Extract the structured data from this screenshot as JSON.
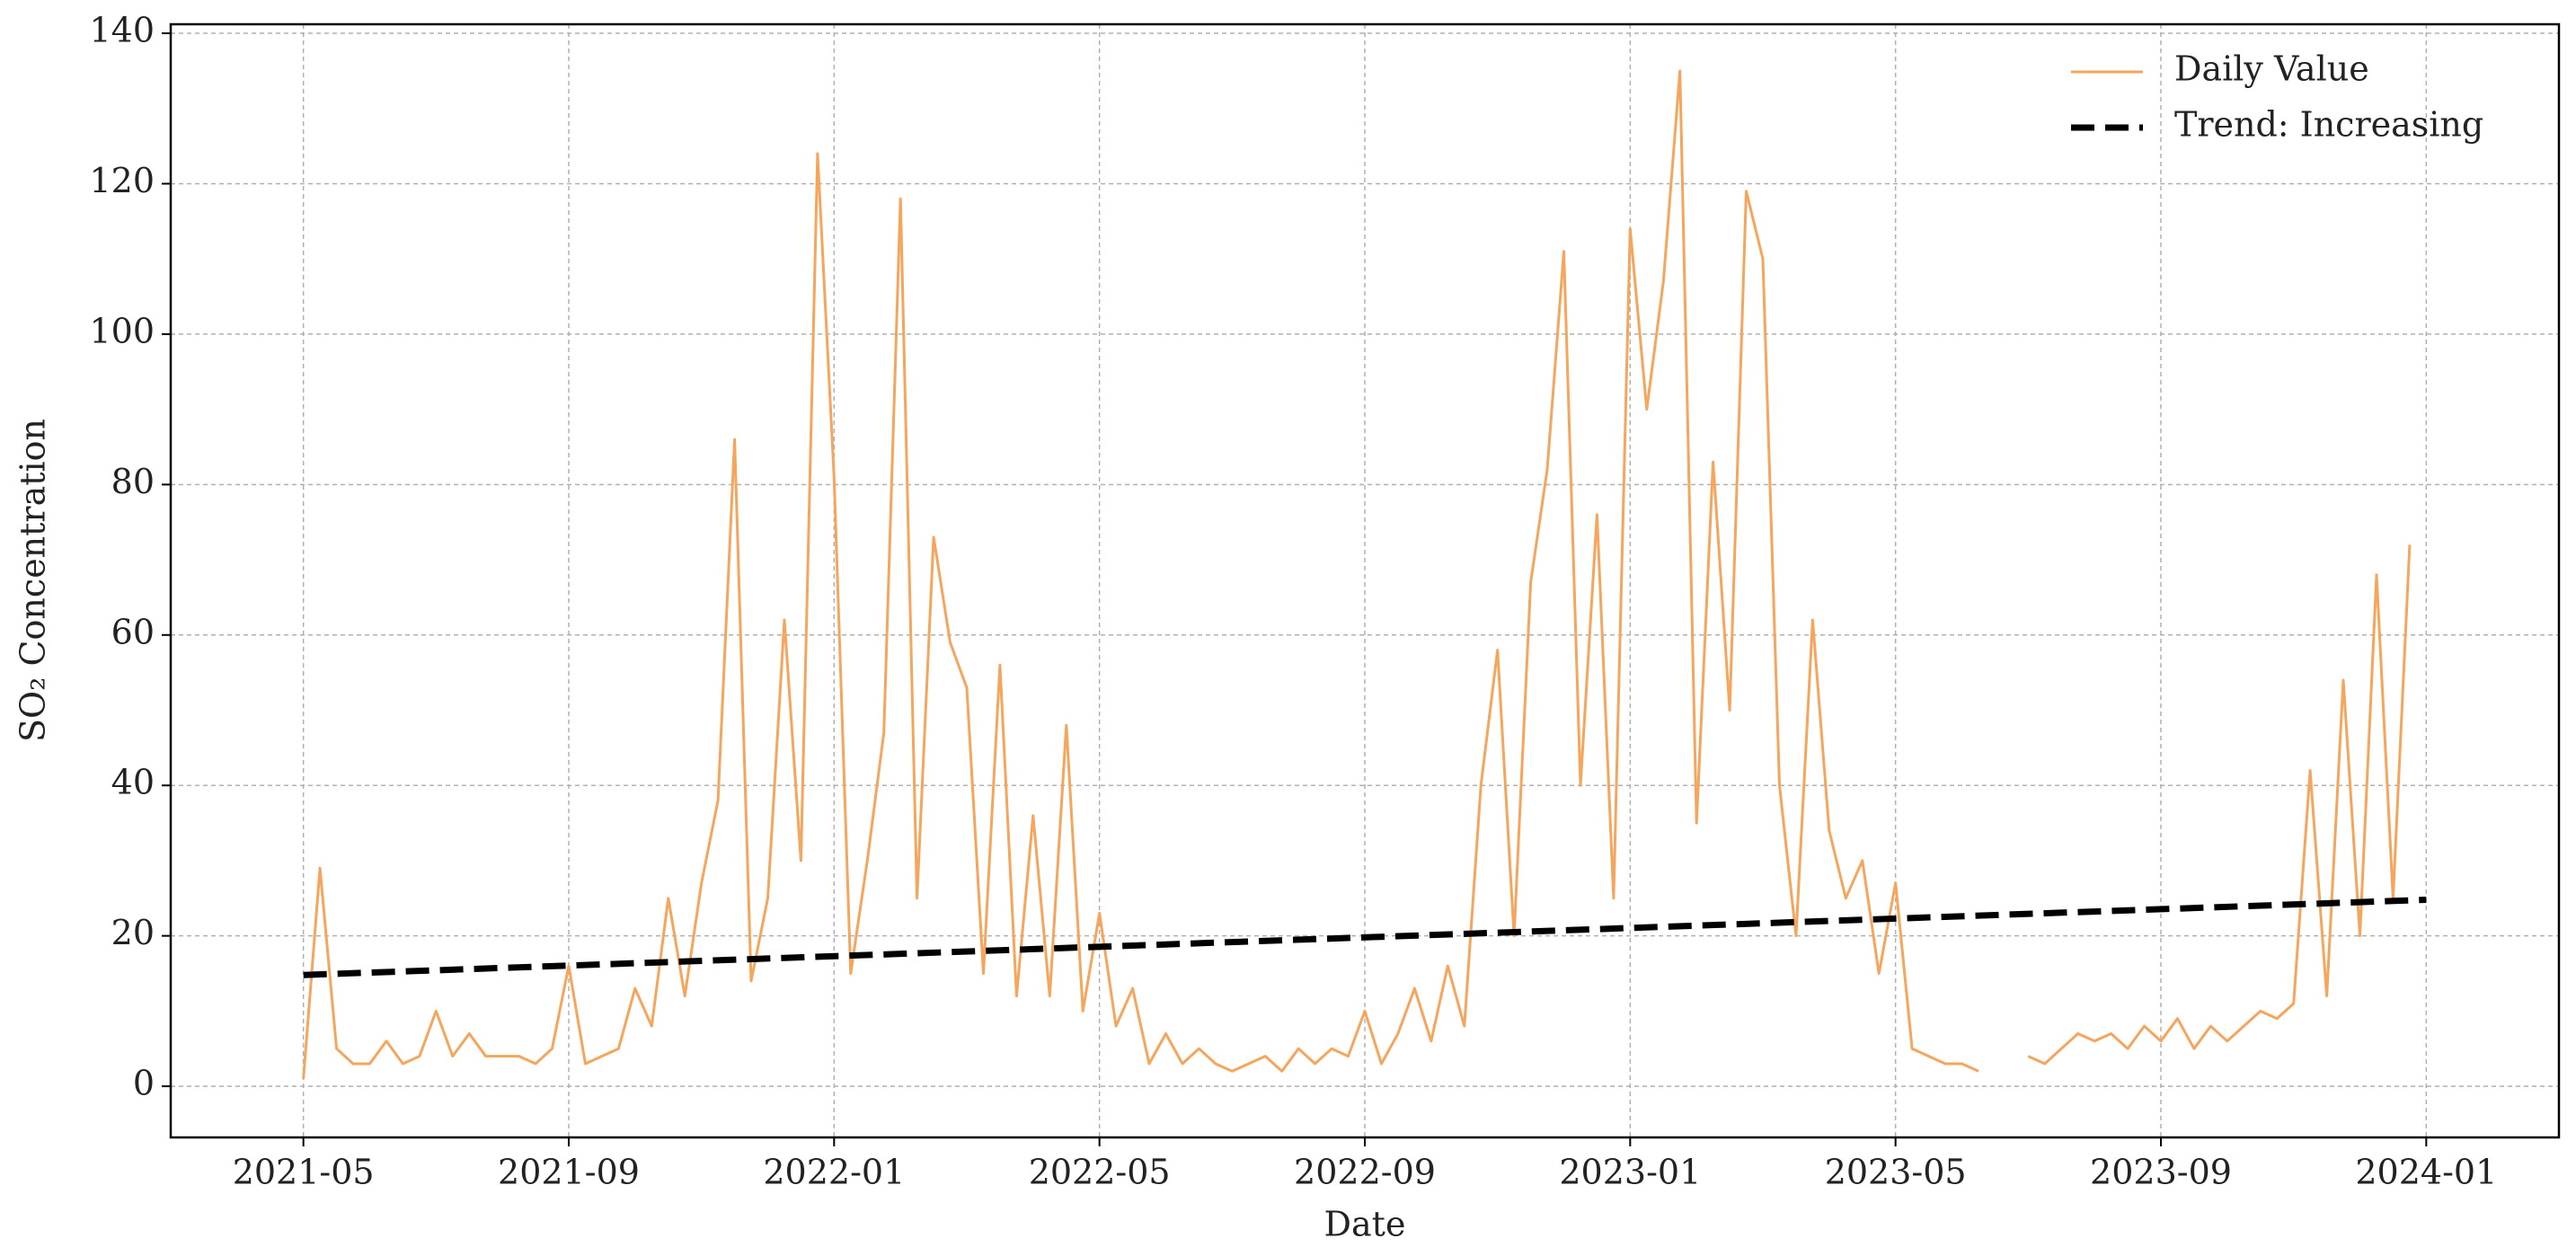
{
  "chart_data": {
    "type": "line",
    "xlabel": "Date",
    "ylabel": "SO₂ Concentration",
    "legend": "upper right",
    "grid": true,
    "xlim": [
      "2021-03",
      "2024-03"
    ],
    "xticks": [
      "2021-05",
      "2021-09",
      "2022-01",
      "2022-05",
      "2022-09",
      "2023-01",
      "2023-05",
      "2023-09",
      "2024-01"
    ],
    "ylim": [
      -6.8,
      141.2
    ],
    "yticks": [
      0,
      20,
      40,
      60,
      80,
      100,
      120,
      140
    ],
    "series": [
      {
        "name": "Daily Value",
        "color": "#f5a55c",
        "linestyle": "solid",
        "x": [
          "2021-05",
          "2021-05",
          "2021-05",
          "2021-05",
          "2021-06",
          "2021-06",
          "2021-06",
          "2021-06",
          "2021-07",
          "2021-07",
          "2021-07",
          "2021-07",
          "2021-08",
          "2021-08",
          "2021-08",
          "2021-08",
          "2021-09",
          "2021-09",
          "2021-09",
          "2021-09",
          "2021-10",
          "2021-10",
          "2021-10",
          "2021-10",
          "2021-11",
          "2021-11",
          "2021-11",
          "2021-11",
          "2021-12",
          "2021-12",
          "2021-12",
          "2021-12",
          "2022-01",
          "2022-01",
          "2022-01",
          "2022-01",
          "2022-02",
          "2022-02",
          "2022-02",
          "2022-02",
          "2022-03",
          "2022-03",
          "2022-03",
          "2022-03",
          "2022-04",
          "2022-04",
          "2022-04",
          "2022-04",
          "2022-05",
          "2022-05",
          "2022-05",
          "2022-05",
          "2022-06",
          "2022-06",
          "2022-06",
          "2022-06",
          "2022-07",
          "2022-07",
          "2022-07",
          "2022-07",
          "2022-08",
          "2022-08",
          "2022-08",
          "2022-08",
          "2022-09",
          "2022-09",
          "2022-09",
          "2022-09",
          "2022-10",
          "2022-10",
          "2022-10",
          "2022-10",
          "2022-11",
          "2022-11",
          "2022-11",
          "2022-11",
          "2022-12",
          "2022-12",
          "2022-12",
          "2022-12",
          "2023-01",
          "2023-01",
          "2023-01",
          "2023-01",
          "2023-02",
          "2023-02",
          "2023-02",
          "2023-02",
          "2023-03",
          "2023-03",
          "2023-03",
          "2023-03",
          "2023-04",
          "2023-04",
          "2023-04",
          "2023-04",
          "2023-05",
          "2023-05",
          "2023-05",
          "2023-05",
          "2023-06",
          "2023-06",
          "2023-06",
          "2023-06",
          "2023-07",
          "2023-07",
          "2023-07",
          "2023-07",
          "2023-08",
          "2023-08",
          "2023-08",
          "2023-08",
          "2023-09",
          "2023-09",
          "2023-09",
          "2023-09",
          "2023-10",
          "2023-10",
          "2023-10",
          "2023-10",
          "2023-11",
          "2023-11",
          "2023-11",
          "2023-11",
          "2023-12",
          "2023-12",
          "2023-12",
          "2023-12"
        ],
        "values": [
          1,
          29,
          5,
          3,
          3,
          6,
          3,
          4,
          10,
          4,
          7,
          4,
          4,
          4,
          3,
          5,
          16,
          3,
          4,
          5,
          13,
          8,
          25,
          12,
          27,
          38,
          86,
          14,
          25,
          62,
          30,
          124,
          81,
          15,
          30,
          47,
          118,
          25,
          73,
          59,
          53,
          15,
          56,
          12,
          36,
          12,
          48,
          10,
          23,
          8,
          13,
          3,
          7,
          3,
          5,
          3,
          2,
          3,
          4,
          2,
          5,
          3,
          5,
          4,
          10,
          3,
          7,
          13,
          6,
          16,
          8,
          40,
          58,
          20,
          67,
          82,
          111,
          40,
          76,
          25,
          114,
          90,
          107,
          135,
          35,
          83,
          50,
          119,
          110,
          40,
          20,
          62,
          34,
          25,
          30,
          15,
          27,
          5,
          4,
          3,
          3,
          2,
          null,
          null,
          4,
          3,
          5,
          7,
          6,
          7,
          5,
          8,
          6,
          9,
          5,
          8,
          6,
          8,
          10,
          9,
          11,
          42,
          12,
          54,
          20,
          68,
          25,
          72
        ]
      },
      {
        "name": "Trend: Increasing",
        "color": "#000000",
        "linestyle": "dashed",
        "x": [
          "2021-05",
          "2024-01"
        ],
        "values": [
          14.8,
          24.8
        ]
      }
    ]
  }
}
